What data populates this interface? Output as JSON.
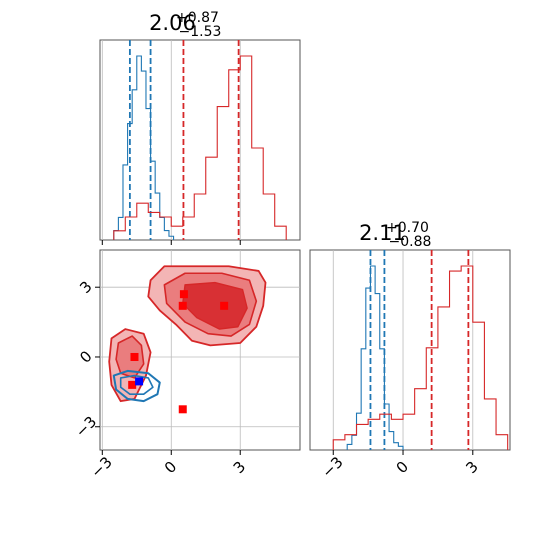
{
  "chart_data": [
    {
      "type": "histogram",
      "panel": "top-left",
      "title": {
        "value": "2.06",
        "upper": "+0.87",
        "lower": "−1.53"
      },
      "xlim": [
        -3.1,
        5.6
      ],
      "grid": true,
      "series": [
        {
          "color": "#1f77b4",
          "bin_edges": [
            -2.5,
            -2.3,
            -2.1,
            -1.9,
            -1.7,
            -1.5,
            -1.3,
            -1.1,
            -0.9,
            -0.7,
            -0.5,
            -0.3,
            -0.1,
            0.1
          ],
          "counts": [
            0.05,
            0.12,
            0.4,
            0.62,
            0.8,
            0.98,
            0.9,
            0.7,
            0.42,
            0.25,
            0.12,
            0.05,
            0.02
          ],
          "quantile_lines": [
            -1.8,
            -0.9
          ]
        },
        {
          "color": "#d62728",
          "bin_edges": [
            -2.5,
            -2.0,
            -1.5,
            -1.0,
            -0.5,
            0.0,
            0.5,
            1.0,
            1.5,
            2.0,
            2.5,
            3.0,
            3.5,
            4.0,
            4.5,
            5.0
          ],
          "counts": [
            0.02,
            0.05,
            0.08,
            0.06,
            0.05,
            0.03,
            0.05,
            0.1,
            0.18,
            0.29,
            0.37,
            0.4,
            0.2,
            0.1,
            0.03
          ],
          "quantile_lines": [
            0.53,
            2.93
          ]
        }
      ]
    },
    {
      "type": "contour",
      "panel": "bottom-left",
      "xlim": [
        -3.1,
        5.6
      ],
      "ylim": [
        -4.0,
        4.6
      ],
      "grid": true,
      "xticks": [
        "−3",
        "0",
        "3"
      ],
      "yticks": [
        "−3",
        "0",
        "3"
      ],
      "series": [
        {
          "color": "#1f77b4",
          "center": [
            -1.3,
            -1.1
          ],
          "marker": [
            -1.4,
            -1.05
          ]
        },
        {
          "color": "#d62728",
          "center": [
            2.2,
            2.4
          ],
          "markers": [
            [
              0.55,
              2.7
            ],
            [
              0.5,
              2.2
            ],
            [
              2.3,
              2.2
            ],
            [
              -1.6,
              0.0
            ],
            [
              -1.7,
              -1.2
            ],
            [
              0.5,
              -2.25
            ]
          ]
        }
      ]
    },
    {
      "type": "histogram",
      "panel": "bottom-right",
      "title": {
        "value": "2.11",
        "upper": "+0.70",
        "lower": "−0.88"
      },
      "xlim": [
        -4.0,
        4.6
      ],
      "grid": true,
      "xticks": [
        "−3",
        "0",
        "3"
      ],
      "series": [
        {
          "color": "#1f77b4",
          "bin_edges": [
            -2.4,
            -2.2,
            -2.0,
            -1.8,
            -1.6,
            -1.4,
            -1.2,
            -1.0,
            -0.8,
            -0.6,
            -0.4,
            -0.2,
            0.0
          ],
          "counts": [
            0.03,
            0.08,
            0.2,
            0.55,
            0.88,
            1.0,
            0.85,
            0.55,
            0.25,
            0.1,
            0.04,
            0.02
          ],
          "quantile_lines": [
            -1.4,
            -0.8
          ]
        },
        {
          "color": "#d62728",
          "bin_edges": [
            -3.0,
            -2.5,
            -2.0,
            -1.5,
            -1.0,
            -0.5,
            0.0,
            0.5,
            1.0,
            1.5,
            2.0,
            2.5,
            3.0,
            3.5,
            4.0,
            4.5
          ],
          "counts": [
            0.02,
            0.03,
            0.05,
            0.06,
            0.07,
            0.06,
            0.07,
            0.12,
            0.2,
            0.28,
            0.35,
            0.36,
            0.25,
            0.1,
            0.03
          ],
          "quantile_lines": [
            1.23,
            2.81
          ]
        }
      ]
    }
  ]
}
